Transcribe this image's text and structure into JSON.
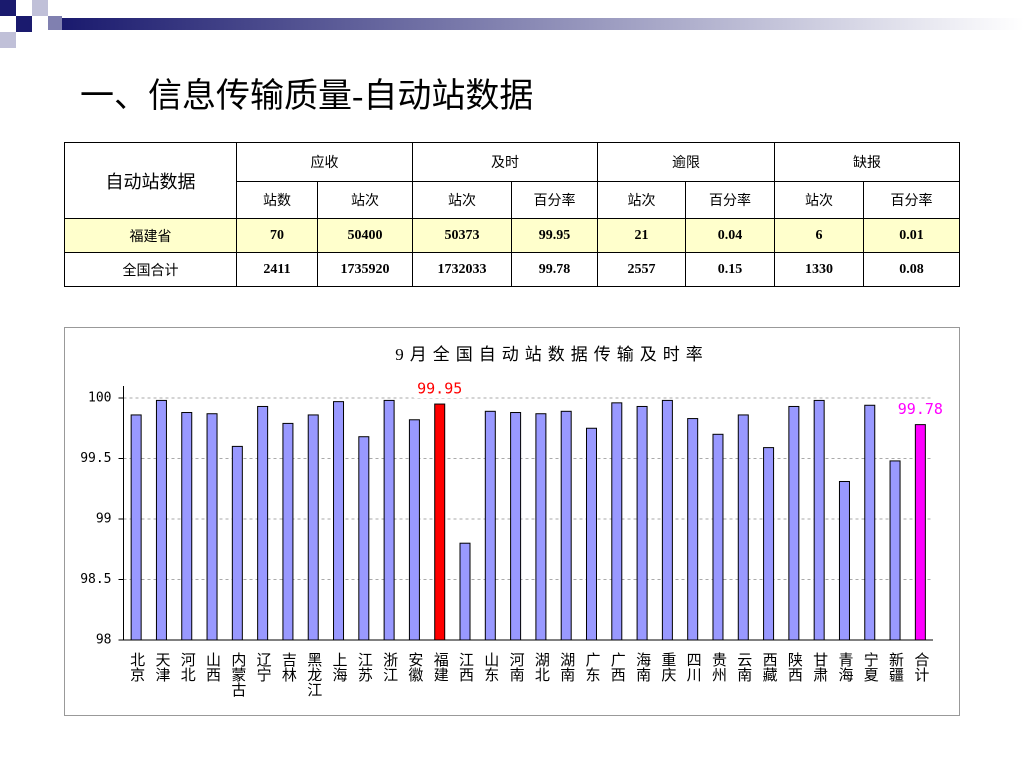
{
  "title": "一、信息传输质量-自动站数据",
  "table": {
    "corner": "自动站数据",
    "groups": [
      "应收",
      "及时",
      "逾限",
      "缺报"
    ],
    "subheaders": [
      "站数",
      "站次",
      "站次",
      "百分率",
      "站次",
      "百分率",
      "站次",
      "百分率"
    ],
    "rows": [
      [
        "福建省",
        "70",
        "50400",
        "50373",
        "99.95",
        "21",
        "0.04",
        "6",
        "0.01"
      ],
      [
        "全国合计",
        "2411",
        "1735920",
        "1732033",
        "99.78",
        "2557",
        "0.15",
        "1330",
        "0.08"
      ]
    ]
  },
  "chart_data": {
    "type": "bar",
    "title": "9月全国自动站数据传输及时率",
    "categories": [
      "北京",
      "天津",
      "河北",
      "山西",
      "内蒙古",
      "辽宁",
      "吉林",
      "黑龙江",
      "上海",
      "江苏",
      "浙江",
      "安徽",
      "福建",
      "江西",
      "山东",
      "河南",
      "湖北",
      "湖南",
      "广东",
      "广西",
      "海南",
      "重庆",
      "四川",
      "贵州",
      "云南",
      "西藏",
      "陕西",
      "甘肃",
      "青海",
      "宁夏",
      "新疆",
      "合计"
    ],
    "values": [
      99.86,
      99.98,
      99.88,
      99.87,
      99.6,
      99.93,
      99.79,
      99.86,
      99.97,
      99.68,
      99.98,
      99.82,
      99.95,
      98.8,
      99.89,
      99.88,
      99.87,
      99.89,
      99.75,
      99.96,
      99.93,
      99.98,
      99.83,
      99.7,
      99.86,
      99.59,
      99.93,
      99.98,
      99.31,
      99.94,
      99.48,
      99.78
    ],
    "value_labels": [
      null,
      null,
      null,
      null,
      null,
      null,
      null,
      null,
      null,
      null,
      null,
      null,
      "99.95",
      null,
      null,
      null,
      null,
      null,
      null,
      null,
      null,
      null,
      null,
      null,
      null,
      null,
      null,
      null,
      null,
      null,
      null,
      "99.78"
    ],
    "colors": [
      "#9999ff",
      "#9999ff",
      "#9999ff",
      "#9999ff",
      "#9999ff",
      "#9999ff",
      "#9999ff",
      "#9999ff",
      "#9999ff",
      "#9999ff",
      "#9999ff",
      "#9999ff",
      "#ff0000",
      "#9999ff",
      "#9999ff",
      "#9999ff",
      "#9999ff",
      "#9999ff",
      "#9999ff",
      "#9999ff",
      "#9999ff",
      "#9999ff",
      "#9999ff",
      "#9999ff",
      "#9999ff",
      "#9999ff",
      "#9999ff",
      "#9999ff",
      "#9999ff",
      "#9999ff",
      "#9999ff",
      "#ff00ff"
    ],
    "ylim": [
      98,
      100
    ],
    "yticks": [
      98,
      98.5,
      99,
      99.5,
      100
    ],
    "grid": true
  }
}
